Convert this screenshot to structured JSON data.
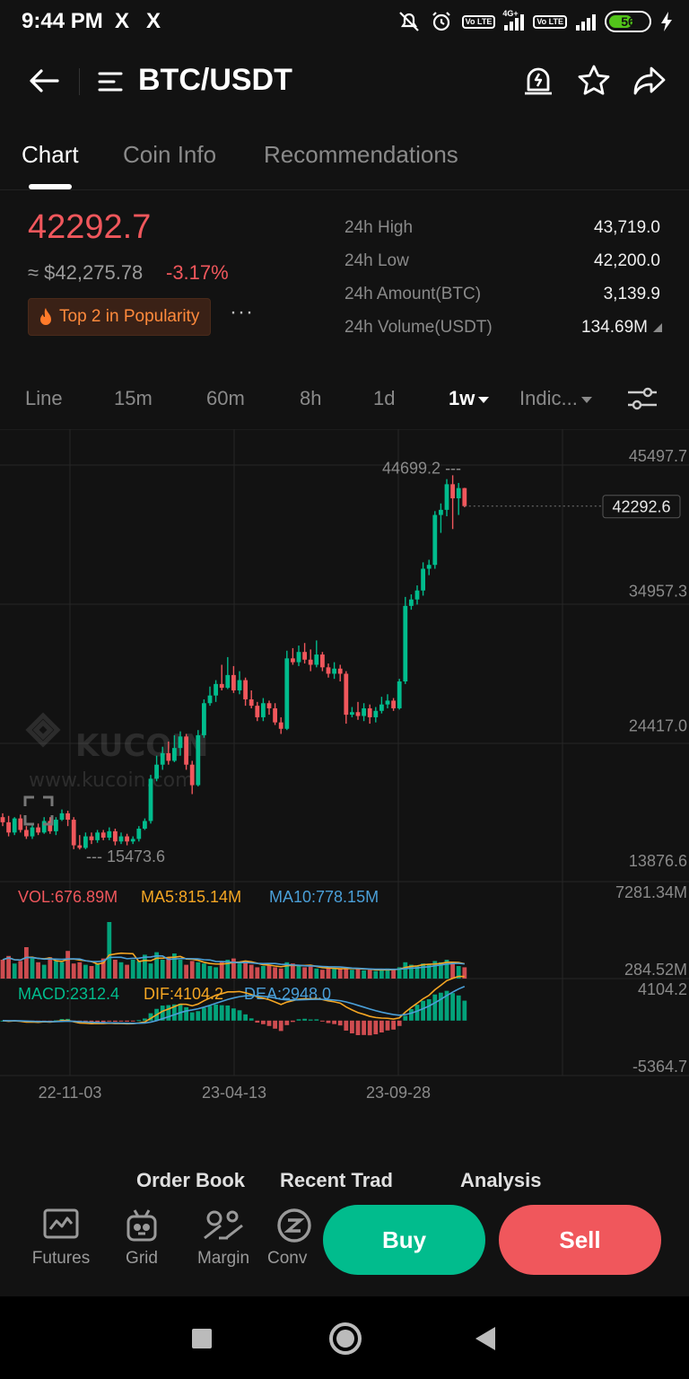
{
  "status_bar": {
    "time": "9:44 PM",
    "x_icon_1": "X",
    "x_icon_2": "X",
    "network": "4G+",
    "lte_1": "Vo LTE",
    "lte_2": "Vo LTE",
    "battery": "56"
  },
  "header": {
    "title": "BTC/USDT"
  },
  "tabs": [
    {
      "label": "Chart",
      "active": true
    },
    {
      "label": "Coin Info",
      "active": false
    },
    {
      "label": "Recommendations",
      "active": false
    }
  ],
  "ticker": {
    "price": "42292.7",
    "usd_value": "≈ $42,275.78",
    "change": "-3.17%",
    "badge": "Top 2 in Popularity",
    "badge_more": "···",
    "stats": [
      {
        "label": "24h High",
        "value": "43,719.0"
      },
      {
        "label": "24h Low",
        "value": "42,200.0"
      },
      {
        "label": "24h Amount(BTC)",
        "value": "3,139.9"
      },
      {
        "label": "24h Volume(USDT)",
        "value": "134.69M"
      }
    ]
  },
  "periods": [
    {
      "label": "Line",
      "active": false
    },
    {
      "label": "15m",
      "active": false
    },
    {
      "label": "60m",
      "active": false
    },
    {
      "label": "8h",
      "active": false
    },
    {
      "label": "1d",
      "active": false
    },
    {
      "label": "1w",
      "active": true
    },
    {
      "label": "Indic...",
      "active": false
    }
  ],
  "colors": {
    "up": "#01bc8d",
    "down": "#f0575c",
    "ma5": "#f5a623",
    "ma10": "#4a9fd8"
  },
  "chart_data": {
    "type": "candlestick",
    "price_axis": [
      "45497.7",
      "34957.3",
      "24417.0",
      "13876.6"
    ],
    "price_range": [
      13876.6,
      45497.7
    ],
    "current_price_label": "42292.6",
    "current_price": 42292.6,
    "high_marker": "44699.2",
    "high_value": 44699.2,
    "low_marker": "15473.6",
    "low_value": 15473.6,
    "watermark": "KUCOIN",
    "watermark_url": "www.kucoin.com",
    "candles": [
      [
        18000,
        17600,
        18300,
        17300
      ],
      [
        17600,
        16800,
        18100,
        16500
      ],
      [
        16800,
        17900,
        18000,
        16600
      ],
      [
        17900,
        17000,
        18200,
        16800
      ],
      [
        17000,
        16500,
        17300,
        16300
      ],
      [
        16500,
        17200,
        17400,
        16300
      ],
      [
        17200,
        16800,
        17500,
        16600
      ],
      [
        16800,
        17700,
        18000,
        16700
      ],
      [
        17700,
        16900,
        18000,
        16700
      ],
      [
        16900,
        17800,
        18000,
        16600
      ],
      [
        17800,
        18300,
        18600,
        17700
      ],
      [
        18300,
        17800,
        18500,
        17300
      ],
      [
        17800,
        15800,
        18000,
        15500
      ],
      [
        15800,
        15600,
        16600,
        15473.6
      ],
      [
        15600,
        16500,
        16800,
        15500
      ],
      [
        16500,
        16200,
        16800,
        15900
      ],
      [
        16200,
        16800,
        17000,
        16000
      ],
      [
        16800,
        16400,
        17000,
        16200
      ],
      [
        16400,
        16900,
        17200,
        16200
      ],
      [
        16900,
        16100,
        17100,
        15800
      ],
      [
        16100,
        16500,
        16800,
        15900
      ],
      [
        16500,
        16100,
        16700,
        15800
      ],
      [
        16100,
        16300,
        16500,
        15900
      ],
      [
        16300,
        17100,
        17300,
        16100
      ],
      [
        17100,
        17700,
        17900,
        17000
      ],
      [
        17700,
        21000,
        21300,
        17500
      ],
      [
        21000,
        22100,
        22800,
        20800
      ],
      [
        22100,
        23000,
        23500,
        21700
      ],
      [
        23000,
        22400,
        23900,
        22100
      ],
      [
        22400,
        23400,
        24400,
        22300
      ],
      [
        23400,
        24300,
        24700,
        22800
      ],
      [
        24300,
        22100,
        24500,
        21700
      ],
      [
        22100,
        20500,
        22400,
        19800
      ],
      [
        20500,
        24400,
        24800,
        20400
      ],
      [
        24400,
        26900,
        27200,
        24200
      ],
      [
        26900,
        27500,
        28200,
        26700
      ],
      [
        27500,
        28400,
        28700,
        27000
      ],
      [
        28400,
        28100,
        29900,
        27900
      ],
      [
        28100,
        29100,
        30500,
        28000
      ],
      [
        29100,
        27900,
        29800,
        27700
      ],
      [
        27900,
        28700,
        29400,
        27600
      ],
      [
        28700,
        27200,
        28900,
        26700
      ],
      [
        27200,
        26700,
        27900,
        26500
      ],
      [
        26700,
        25800,
        27000,
        25500
      ],
      [
        25800,
        26900,
        27300,
        25500
      ],
      [
        26900,
        26500,
        27100,
        26000
      ],
      [
        26500,
        25400,
        26900,
        25200
      ],
      [
        25400,
        24900,
        25800,
        24500
      ],
      [
        24900,
        30400,
        31000,
        24800
      ],
      [
        30400,
        30100,
        31200,
        29900
      ],
      [
        30100,
        30900,
        31400,
        29800
      ],
      [
        30900,
        30300,
        31600,
        30000
      ],
      [
        30300,
        29900,
        31100,
        29400
      ],
      [
        29900,
        30700,
        31800,
        29700
      ],
      [
        30700,
        29700,
        30900,
        29400
      ],
      [
        29700,
        29200,
        30000,
        28900
      ],
      [
        29200,
        29600,
        30100,
        28800
      ],
      [
        29600,
        29200,
        29900,
        28600
      ],
      [
        29200,
        26000,
        29400,
        25300
      ],
      [
        26000,
        26200,
        26600,
        25800
      ],
      [
        26200,
        25900,
        27000,
        25600
      ],
      [
        25900,
        26500,
        26900,
        25500
      ],
      [
        26500,
        25800,
        26800,
        25300
      ],
      [
        25800,
        26300,
        26600,
        25400
      ],
      [
        26300,
        26800,
        27400,
        26100
      ],
      [
        26800,
        27100,
        27600,
        26500
      ],
      [
        27100,
        26500,
        27300,
        26300
      ],
      [
        26500,
        28600,
        28800,
        26400
      ],
      [
        28600,
        34500,
        35200,
        28400
      ],
      [
        34500,
        35000,
        35400,
        34200
      ],
      [
        35000,
        35700,
        36100,
        34600
      ],
      [
        35700,
        37400,
        37900,
        35300
      ],
      [
        37400,
        37700,
        38100,
        36900
      ],
      [
        37700,
        41600,
        41900,
        37400
      ],
      [
        41600,
        42000,
        42500,
        40200
      ],
      [
        42000,
        44000,
        44400,
        41500
      ],
      [
        44000,
        42900,
        44699.2,
        40500
      ],
      [
        42900,
        43700,
        44100,
        41600
      ],
      [
        43700,
        42292.6,
        43719,
        42200
      ]
    ],
    "volume_panel": {
      "vol_label": "VOL:676.89M",
      "ma5_label": "MA5:815.14M",
      "ma10_label": "MA10:778.15M",
      "axis_max": "7281.34M",
      "axis_mid": "284.52M",
      "axis_max_value": 7281.34,
      "volumes": [
        1500,
        1800,
        1200,
        1400,
        2500,
        1600,
        1300,
        1100,
        1700,
        1400,
        1300,
        2200,
        1200,
        1300,
        1100,
        1000,
        1200,
        1600,
        4500,
        1500,
        1300,
        1100,
        1500,
        1400,
        1900,
        1200,
        2100,
        1500,
        1700,
        2000,
        1500,
        1100,
        1400,
        1300,
        1200,
        1000,
        900,
        1400,
        1500,
        1600,
        1200,
        1300,
        1100,
        900,
        1000,
        1100,
        900,
        800,
        1300,
        1200,
        1000,
        900,
        950,
        800,
        700,
        850,
        800,
        750,
        900,
        700,
        800,
        650,
        700,
        600,
        700,
        800,
        750,
        900,
        1300,
        1100,
        1000,
        1200,
        1100,
        1400,
        1300,
        1500,
        1200,
        1000,
        900
      ]
    },
    "macd_panel": {
      "macd_label": "MACD:2312.4",
      "dif_label": "DIF:4104.2",
      "dea_label": "DEA:2948.0",
      "axis_max": "4104.2",
      "axis_min": "-5364.7",
      "axis_max_value": 4104.2,
      "axis_min_value": -5364.7
    },
    "dates": [
      "22-11-03",
      "23-04-13",
      "23-09-28"
    ]
  },
  "bottom_tabs": [
    "Order Book",
    "Recent Trad",
    "Analysis"
  ],
  "nav_items": [
    {
      "label": "Futures"
    },
    {
      "label": "Grid"
    },
    {
      "label": "Margin"
    },
    {
      "label": "Conv"
    }
  ],
  "actions": {
    "buy": "Buy",
    "sell": "Sell"
  }
}
